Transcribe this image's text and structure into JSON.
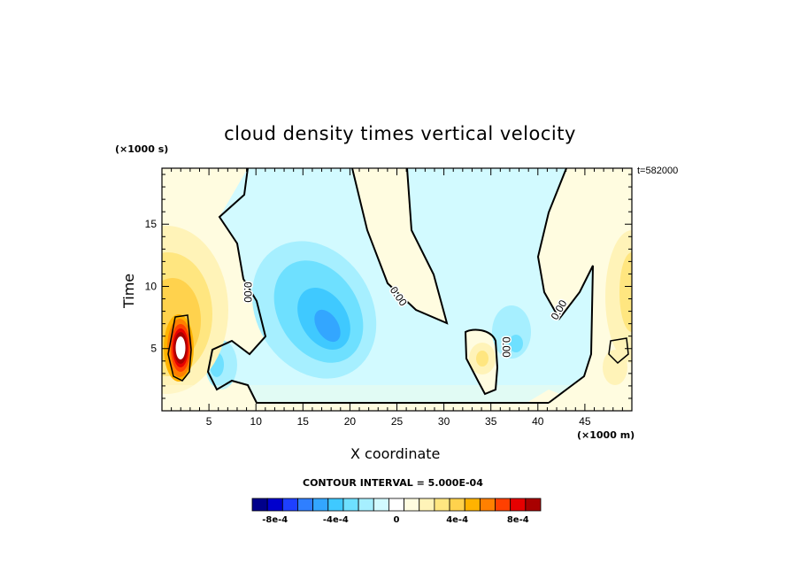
{
  "chart_data": {
    "type": "heatmap",
    "title": "cloud density times vertical velocity",
    "xlabel": "X coordinate",
    "ylabel": "Time",
    "x_unit_label": "(×1000 m)",
    "y_unit_label": "(×1000 s)",
    "time_annotation": "t=582000",
    "xlim": [
      0,
      50
    ],
    "ylim": [
      0,
      19.5
    ],
    "x_ticks": [
      "5",
      "10",
      "15",
      "20",
      "25",
      "30",
      "35",
      "40",
      "45"
    ],
    "x_tick_values": [
      5,
      10,
      15,
      20,
      25,
      30,
      35,
      40,
      45
    ],
    "y_ticks": [
      "5",
      "10",
      "15"
    ],
    "y_tick_values": [
      5,
      10,
      15
    ],
    "contour_labels": [
      "0.00",
      "0.00",
      "0.00",
      "0.00"
    ],
    "contour_interval_text": "CONTOUR INTERVAL = 5.000E-04",
    "colorbar": {
      "labels": [
        "-8e-4",
        "-4e-4",
        "0",
        "4e-4",
        "8e-4"
      ],
      "label_values": [
        -0.0008,
        -0.0004,
        0,
        0.0004,
        0.0008
      ],
      "colors": [
        "#00008b",
        "#0000cd",
        "#1e40ff",
        "#2f7fff",
        "#33a6ff",
        "#3fc9ff",
        "#6ee0ff",
        "#a6efff",
        "#d2faff",
        "#ffffff",
        "#fffce0",
        "#fff3b8",
        "#ffe680",
        "#ffd24d",
        "#ffb300",
        "#ff8000",
        "#ff4000",
        "#e60000",
        "#a80000"
      ]
    },
    "features": [
      {
        "kind": "positive-max",
        "x": 1.8,
        "y": 5,
        "value": 0.001
      },
      {
        "kind": "negative-min",
        "x": 17.5,
        "y": 7,
        "value": -0.0004
      },
      {
        "kind": "negative",
        "x": 5.5,
        "y": 3.5,
        "value": -0.0003
      },
      {
        "kind": "positive",
        "x": 34.5,
        "y": 4,
        "value": 0.0002
      },
      {
        "kind": "negative",
        "x": 38.5,
        "y": 5.5,
        "value": -0.0002
      },
      {
        "kind": "positive",
        "x": 48.5,
        "y": 10,
        "value": 0.0002
      }
    ]
  }
}
